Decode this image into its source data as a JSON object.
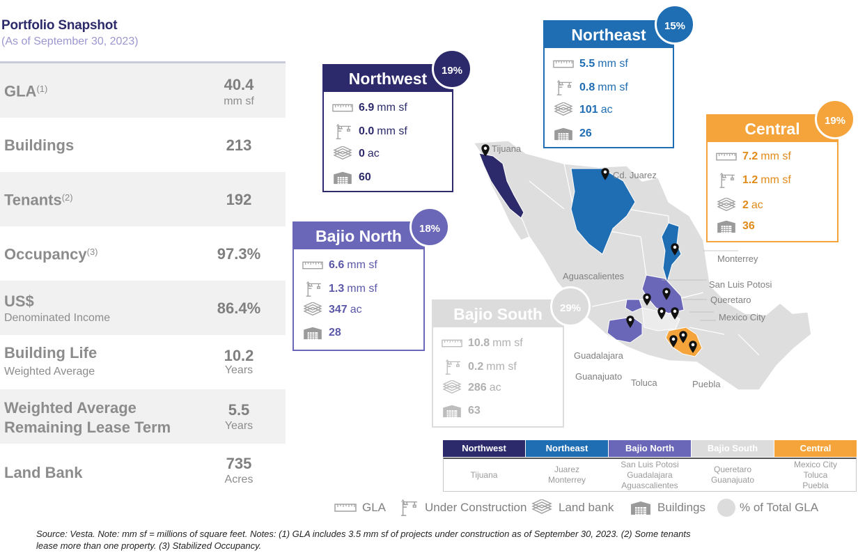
{
  "header": {
    "title": "Portfolio Snapshot",
    "subtitle": "(As of September 30, 2023)"
  },
  "stats": [
    {
      "label": "GLA",
      "sup": "(1)",
      "sub": "",
      "value": "40.4",
      "unit": "mm sf"
    },
    {
      "label": "Buildings",
      "sup": "",
      "sub": "",
      "value": "213",
      "unit": ""
    },
    {
      "label": "Tenants",
      "sup": "(2)",
      "sub": "",
      "value": "192",
      "unit": ""
    },
    {
      "label": "Occupancy",
      "sup": "(3)",
      "sub": "",
      "value": "97.3%",
      "unit": ""
    },
    {
      "label": "US$",
      "sup": "",
      "sub": "Denominated Income",
      "value": "86.4%",
      "unit": ""
    },
    {
      "label": "Building Life",
      "sup": "",
      "sub": "Weighted Average",
      "value": "10.2",
      "unit": "Years"
    },
    {
      "label": "Weighted Average",
      "label2": "Remaining Lease Term",
      "sup": "",
      "sub": "",
      "value": "5.5",
      "unit": "Years"
    },
    {
      "label": "Land Bank",
      "sup": "",
      "sub": "",
      "value": "735",
      "unit": "Acres"
    }
  ],
  "regions": {
    "northwest": {
      "name": "Northwest",
      "pct": "19%",
      "gla": "6.9",
      "gla_unit": "mm sf",
      "uc": "0.0",
      "uc_unit": "mm sf",
      "land": "0",
      "land_unit": "ac",
      "buildings": "60",
      "color": "#2c2a6b"
    },
    "northeast": {
      "name": "Northeast",
      "pct": "15%",
      "gla": "5.5",
      "gla_unit": "mm sf",
      "uc": "0.8",
      "uc_unit": "mm sf",
      "land": "101",
      "land_unit": "ac",
      "buildings": "26",
      "color": "#1f6db3"
    },
    "central": {
      "name": "Central",
      "pct": "19%",
      "gla": "7.2",
      "gla_unit": "mm sf",
      "uc": "1.2",
      "uc_unit": "mm sf",
      "land": "2",
      "land_unit": "ac",
      "buildings": "36",
      "color": "#f4a43a"
    },
    "bajio_north": {
      "name": "Bajio North",
      "pct": "18%",
      "gla": "6.6",
      "gla_unit": "mm sf",
      "uc": "1.3",
      "uc_unit": "mm sf",
      "land": "347",
      "land_unit": "ac",
      "buildings": "28",
      "color": "#6a67b8"
    },
    "bajio_south": {
      "name": "Bajio South",
      "pct": "29%",
      "gla": "10.8",
      "gla_unit": "mm sf",
      "uc": "0.2",
      "uc_unit": "mm sf",
      "land": "286",
      "land_unit": "ac",
      "buildings": "63",
      "color": "#d8d8d8"
    }
  },
  "map_labels": {
    "tijuana": "Tijuana",
    "cd_juarez": "Cd. Juarez",
    "monterrey": "Monterrey",
    "aguascalientes": "Aguascalientes",
    "san_luis_potosi": "San Luis Potosi",
    "queretaro": "Queretaro",
    "mexico_city": "Mexico City",
    "guadalajara": "Guadalajara",
    "guanajuato": "Guanajuato",
    "toluca": "Toluca",
    "puebla": "Puebla"
  },
  "legend_table": [
    {
      "name": "Northwest",
      "cities": [
        "Tijuana"
      ],
      "color": "#2c2a6b"
    },
    {
      "name": "Northeast",
      "cities": [
        "Juarez",
        "Monterrey"
      ],
      "color": "#1f6db3"
    },
    {
      "name": "Bajio North",
      "cities": [
        "San Luis Potosi",
        "Guadalajara",
        "Aguascalientes"
      ],
      "color": "#6a67b8"
    },
    {
      "name": "Bajio South",
      "cities": [
        "Queretaro",
        "Guanajuato"
      ],
      "color": "#d8d8d8"
    },
    {
      "name": "Central",
      "cities": [
        "Mexico City",
        "Toluca",
        "Puebla"
      ],
      "color": "#f4a43a"
    }
  ],
  "bottom_legend": {
    "gla": "GLA",
    "under_construction": "Under Construction",
    "land_bank": "Land bank",
    "buildings": "Buildings",
    "pct_gla": "% of Total GLA"
  },
  "icons": [
    "ruler-icon",
    "crane-icon",
    "land-layers-icon",
    "warehouse-icon",
    "circle-icon",
    "map-pin-icon"
  ],
  "footnote": {
    "line1": "Source: Vesta. Note: mm sf = millions of square feet. Notes: (1) GLA includes 3.5 mm sf of projects under construction as of September 30, 2023. (2) Some tenants",
    "line2": "lease more than one property. (3) Stabilized Occupancy."
  }
}
